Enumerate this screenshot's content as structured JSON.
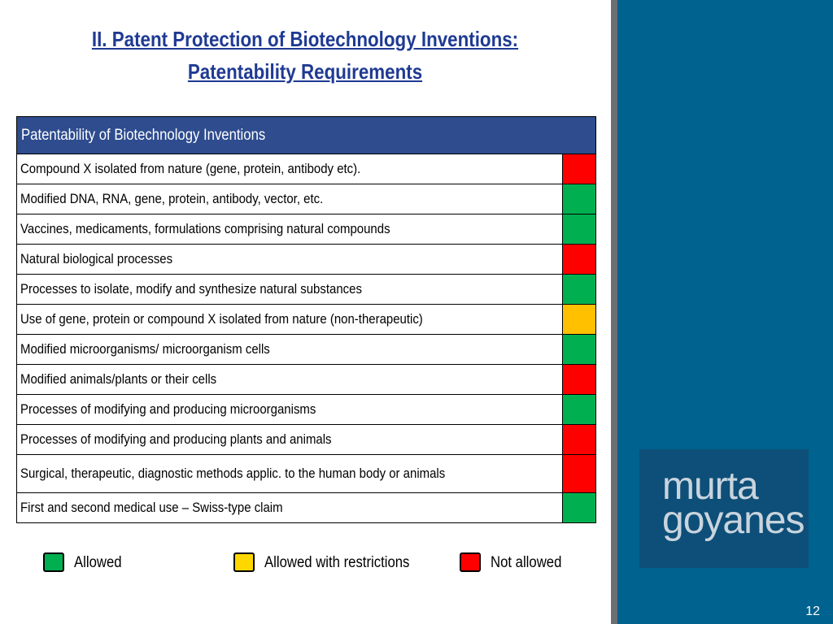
{
  "slide": {
    "title_line1": "II. Patent Protection of Biotechnology Inventions:",
    "title_line2": "Patentability Requirements",
    "page_number": "12"
  },
  "logo": {
    "line1": "murta",
    "line2": "goyanes"
  },
  "colors": {
    "allowed": "#00b050",
    "restricted": "#ffc000",
    "not_allowed": "#ff0000",
    "legend_restricted": "#ffd700",
    "header": "#2e4c8e",
    "side_panel": "#00628e"
  },
  "table": {
    "header": "Patentability of Biotechnology Inventions",
    "rows": [
      {
        "label": "Compound X isolated from nature (gene, protein, antibody etc).",
        "status": "not_allowed"
      },
      {
        "label": "Modified DNA, RNA, gene, protein, antibody, vector, etc.",
        "status": "allowed"
      },
      {
        "label": "Vaccines, medicaments, formulations comprising natural compounds",
        "status": "allowed"
      },
      {
        "label": "Natural biological processes",
        "status": "not_allowed"
      },
      {
        "label": "Processes to isolate, modify and synthesize natural substances",
        "status": "allowed"
      },
      {
        "label": "Use of gene, protein or compound X isolated from nature (non-therapeutic)",
        "status": "restricted"
      },
      {
        "label": "Modified microorganisms/ microorganism cells",
        "status": "allowed"
      },
      {
        "label": "Modified animals/plants or their cells",
        "status": "not_allowed"
      },
      {
        "label": "Processes of modifying and producing  microorganisms",
        "status": "allowed"
      },
      {
        "label": "Processes of modifying and producing plants and animals",
        "status": "not_allowed"
      },
      {
        "label": "Surgical, therapeutic, diagnostic methods applic. to the human body or animals",
        "status": "not_allowed"
      },
      {
        "label": "First  and second medical use – Swiss-type claim",
        "status": "allowed"
      }
    ]
  },
  "legend": {
    "allowed": "Allowed",
    "restricted": "Allowed with restrictions",
    "not_allowed": "Not allowed"
  }
}
